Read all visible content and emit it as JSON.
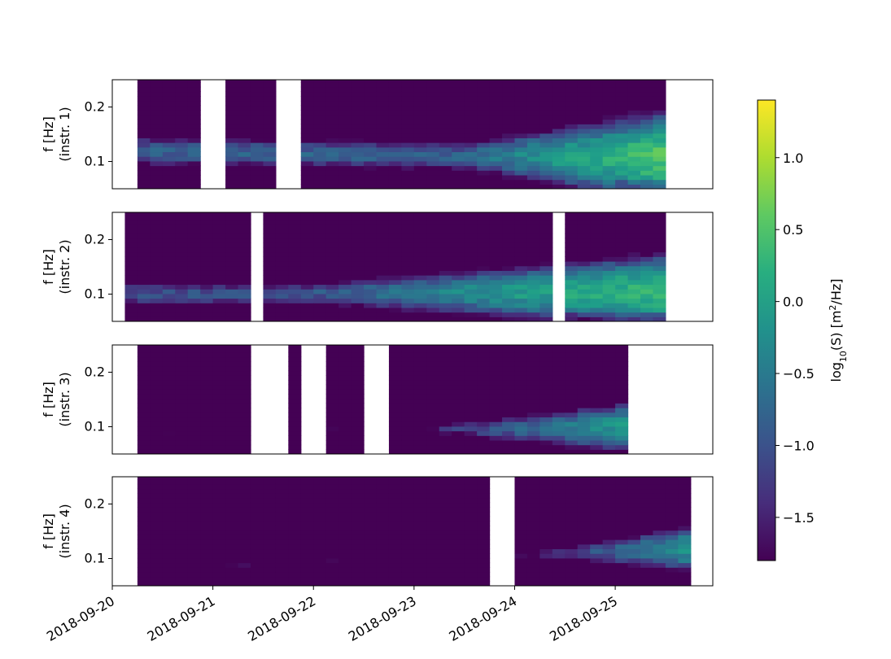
{
  "chart_data": {
    "type": "heatmap",
    "x_dates": [
      "2018-09-20",
      "2018-09-21",
      "2018-09-22",
      "2018-09-23",
      "2018-09-24",
      "2018-09-25"
    ],
    "x_range_days": [
      0,
      5.97
    ],
    "y_range_hz": [
      0.05,
      0.25
    ],
    "y_ticks": [
      "0.1",
      "0.2"
    ],
    "panels": [
      {
        "ylabel_line1": "f [Hz]",
        "ylabel_line2": "(instr. 1)",
        "gaps_days": [
          [
            0,
            0.25
          ],
          [
            0.9,
            1.12
          ],
          [
            1.63,
            1.83
          ],
          [
            5.55,
            5.97
          ]
        ],
        "peak_freq_start": 0.12,
        "peak_freq_end": 0.105,
        "level_start": -0.8,
        "level_end": 0.75,
        "band_start": 0.03,
        "band_end": 0.09,
        "ramp_start_day": 3.5
      },
      {
        "ylabel_line1": "f [Hz]",
        "ylabel_line2": "(instr. 2)",
        "gaps_days": [
          [
            0,
            0.17
          ],
          [
            1.36,
            1.55
          ],
          [
            4.33,
            4.56
          ],
          [
            5.45,
            5.97
          ]
        ],
        "peak_freq_start": 0.1,
        "peak_freq_end": 0.105,
        "level_start": -1.0,
        "level_end": 0.5,
        "band_start": 0.025,
        "band_end": 0.07,
        "ramp_start_day": 2.0
      },
      {
        "ylabel_line1": "f [Hz]",
        "ylabel_line2": "(instr. 3)",
        "gaps_days": [
          [
            0,
            0.23
          ],
          [
            1.42,
            1.7
          ],
          [
            1.83,
            2.13
          ],
          [
            2.47,
            2.73
          ],
          [
            5.07,
            5.97
          ]
        ],
        "peak_freq_start": 0.09,
        "peak_freq_end": 0.1,
        "level_start": -1.8,
        "level_end": 0.5,
        "band_start": 0.01,
        "band_end": 0.06,
        "ramp_start_day": 3.0
      },
      {
        "ylabel_line1": "f [Hz]",
        "ylabel_line2": "(instr. 4)",
        "gaps_days": [
          [
            0,
            0.25
          ],
          [
            3.8,
            4.0
          ],
          [
            5.8,
            5.97
          ]
        ],
        "peak_freq_start": 0.08,
        "peak_freq_end": 0.12,
        "level_start": -1.8,
        "level_end": 0.0,
        "band_start": 0.01,
        "band_end": 0.05,
        "ramp_start_day": 4.15
      }
    ],
    "colorbar": {
      "label_base": "log",
      "label_sub": "10",
      "label_rest": "(S) [m",
      "label_sup": "2",
      "label_end": "/Hz]",
      "range": [
        -1.8,
        1.4
      ],
      "ticks": [
        "1.0",
        "0.5",
        "0.0",
        "−0.5",
        "−1.0",
        "−1.5"
      ],
      "tick_values": [
        1.0,
        0.5,
        0.0,
        -0.5,
        -1.0,
        -1.5
      ]
    },
    "colormap": "viridis"
  }
}
